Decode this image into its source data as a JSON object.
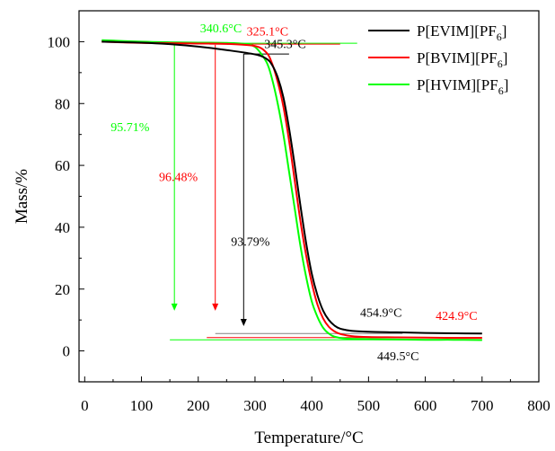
{
  "chart_data": {
    "type": "line",
    "xlabel": "Temperature/°C",
    "ylabel": "Mass/%",
    "xlim": [
      -10,
      800
    ],
    "ylim": [
      -10,
      110
    ],
    "xticks": [
      0,
      100,
      200,
      300,
      400,
      500,
      600,
      700,
      800
    ],
    "yticks": [
      0,
      20,
      40,
      60,
      80,
      100
    ],
    "grid": false,
    "legend": "top-right",
    "series": [
      {
        "name_main": "P[EVIM][PF",
        "name_sub": "6",
        "name_end": "]",
        "color": "#000000",
        "x": [
          30,
          100,
          150,
          200,
          250,
          300,
          320,
          330,
          340,
          350,
          360,
          370,
          380,
          390,
          400,
          410,
          420,
          430,
          440,
          450,
          470,
          500,
          550,
          600,
          650,
          700
        ],
        "y": [
          100,
          99.7,
          99.2,
          98.4,
          97.3,
          95.9,
          94.5,
          92.5,
          88.5,
          82,
          72,
          60,
          47,
          35,
          25,
          18,
          13,
          10,
          8.2,
          7.2,
          6.5,
          6.2,
          6.0,
          5.8,
          5.7,
          5.6
        ]
      },
      {
        "name_main": "P[BVIM][PF",
        "name_sub": "6",
        "name_end": "]",
        "color": "#ff0000",
        "x": [
          30,
          100,
          150,
          200,
          250,
          300,
          320,
          330,
          340,
          350,
          360,
          370,
          380,
          390,
          400,
          410,
          420,
          430,
          440,
          450,
          470,
          500,
          550,
          600,
          650,
          700
        ],
        "y": [
          100,
          99.6,
          99.5,
          99.4,
          99.3,
          98.6,
          96.5,
          93,
          87,
          79,
          68,
          55,
          42,
          31,
          22,
          15,
          10.5,
          7.8,
          6.3,
          5.5,
          4.8,
          4.5,
          4.4,
          4.3,
          4.2,
          4.2
        ]
      },
      {
        "name_main": "P[HVIM][PF",
        "name_sub": "6",
        "name_end": "]",
        "color": "#00ff00",
        "x": [
          30,
          100,
          150,
          200,
          250,
          280,
          300,
          320,
          330,
          340,
          350,
          360,
          370,
          380,
          390,
          400,
          410,
          420,
          430,
          440,
          460,
          500,
          550,
          600,
          650,
          700
        ],
        "y": [
          100.5,
          100,
          99.8,
          99.7,
          99.6,
          99.3,
          98.3,
          93.5,
          88,
          80,
          70,
          58,
          46,
          34,
          24,
          16,
          11,
          7.5,
          5.6,
          4.6,
          4.0,
          3.8,
          3.7,
          3.6,
          3.6,
          3.5
        ]
      }
    ],
    "annotations": [
      {
        "text": "340.6°C",
        "color": "#00ff00",
        "x": 240,
        "y": 103
      },
      {
        "text": "325.1°C",
        "color": "#ff0000",
        "x": 322,
        "y": 102
      },
      {
        "text": "345.3°C",
        "color": "#000000",
        "x": 353,
        "y": 98
      },
      {
        "text": "95.71%",
        "color": "#00ff00",
        "x": 80,
        "y": 71
      },
      {
        "text": "96.48%",
        "color": "#ff0000",
        "x": 165,
        "y": 55
      },
      {
        "text": "93.79%",
        "color": "#000000",
        "x": 292,
        "y": 34
      },
      {
        "text": "454.9°C",
        "color": "#000000",
        "x": 522,
        "y": 11
      },
      {
        "text": "424.9°C",
        "color": "#ff0000",
        "x": 655,
        "y": 10
      },
      {
        "text": "449.5°C",
        "color": "#000000",
        "x": 552,
        "y": -3
      }
    ],
    "mass_loss_arrows": [
      {
        "color": "#00ff00",
        "x": 158,
        "y_top": 99,
        "y_bottom": 13
      },
      {
        "color": "#ff0000",
        "x": 230,
        "y_top": 99,
        "y_bottom": 13
      },
      {
        "color": "#000000",
        "x": 280,
        "y_top": 96,
        "y_bottom": 8
      }
    ],
    "onset_lines": [
      {
        "color": "#00ff00",
        "x": [
          150,
          480
        ],
        "y": [
          99.5,
          99.5
        ]
      },
      {
        "color": "#ff0000",
        "x": [
          220,
          450
        ],
        "y": [
          99.2,
          99.2
        ]
      },
      {
        "color": "#000000",
        "x": [
          280,
          360
        ],
        "y": [
          96,
          96
        ]
      }
    ],
    "residue_lines": [
      {
        "color": "#808080",
        "x": [
          230,
          560
        ],
        "y": [
          5.6,
          5.6
        ]
      },
      {
        "color": "#ff0000",
        "x": [
          215,
          700
        ],
        "y": [
          4.3,
          4.3
        ]
      },
      {
        "color": "#00ff00",
        "x": [
          150,
          700
        ],
        "y": [
          3.6,
          3.6
        ]
      }
    ]
  }
}
